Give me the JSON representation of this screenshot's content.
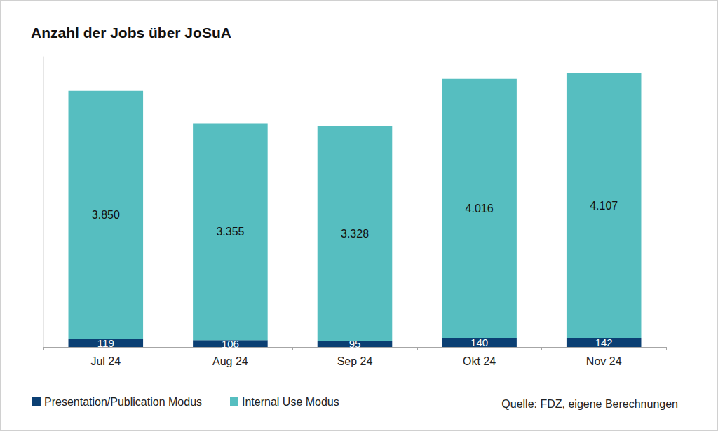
{
  "chart_data": {
    "type": "bar",
    "title": "Anzahl der Jobs über JoSuA",
    "categories": [
      "Jul 24",
      "Aug 24",
      "Sep 24",
      "Okt 24",
      "Nov 24"
    ],
    "series": [
      {
        "name": "Presentation/Publication Modus",
        "color": "#0b3f73",
        "values": [
          119,
          106,
          95,
          140,
          142
        ]
      },
      {
        "name": "Internal Use Modus",
        "color": "#56bec0",
        "values": [
          3850,
          3355,
          3328,
          4016,
          4107
        ],
        "value_labels": [
          "3.850",
          "3.355",
          "3.328",
          "4.016",
          "4.107"
        ]
      }
    ],
    "stacked": true,
    "data_labels": true,
    "ylim": [
      0,
      4500
    ],
    "tick_labels": "x",
    "grid": false,
    "legend": "bottom left",
    "annotations": [
      "Quelle: FDZ, eigene Berechnungen"
    ]
  }
}
